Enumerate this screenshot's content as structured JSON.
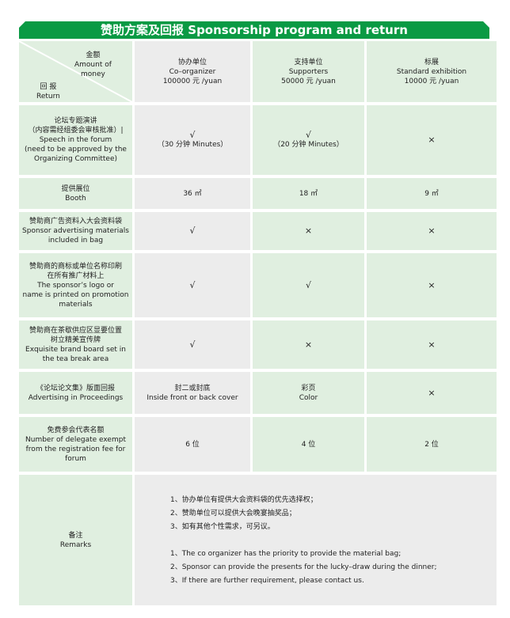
{
  "title": "赞助方案及回报 Sponsorship program and return",
  "header": {
    "corner": {
      "money_cn": "金额",
      "money_en1": "Amount of",
      "money_en2": "money",
      "return_cn": "回 报",
      "return_en": "Return"
    },
    "columns": [
      {
        "cn": "协办单位",
        "en": "Co–organizer",
        "price": "100000 元 /yuan"
      },
      {
        "cn": "支持单位",
        "en": "Supporters",
        "price": "50000 元 /yuan"
      },
      {
        "cn": "标展",
        "en": "Standard exhibition",
        "price": "10000 元 /yuan"
      }
    ]
  },
  "rows": [
    {
      "label": [
        "论坛专题演讲",
        "（内容需经组委会审核批准）|",
        "Speech in the forum",
        "(need to be approved by the",
        "Organizing Committee)"
      ],
      "values": [
        [
          "√",
          "（30 分钟 Minutes）"
        ],
        [
          "√",
          "（20 分钟 Minutes）"
        ],
        [
          "×"
        ]
      ]
    },
    {
      "label": [
        "提供展位",
        "Booth"
      ],
      "values": [
        [
          "36 ㎡"
        ],
        [
          "18 ㎡"
        ],
        [
          "9 ㎡"
        ]
      ]
    },
    {
      "label": [
        "赞助商广告资料入大会资料袋",
        "Sponsor advertising materials",
        "included in bag"
      ],
      "values": [
        [
          "√"
        ],
        [
          "×"
        ],
        [
          "×"
        ]
      ]
    },
    {
      "label": [
        "赞助商的商标或单位名称印刷",
        "在所有推广材料上",
        "The sponsor’s logo or",
        "name is printed on promotion",
        "materials"
      ],
      "values": [
        [
          "√"
        ],
        [
          "√"
        ],
        [
          "×"
        ]
      ]
    },
    {
      "label": [
        "赞助商在茶歇供应区显要位置",
        "树立精美宣传牌",
        "Exquisite brand board set in",
        "the tea break area"
      ],
      "values": [
        [
          "√"
        ],
        [
          "×"
        ],
        [
          "×"
        ]
      ]
    },
    {
      "label": [
        "《论坛论文集》版面回报",
        "Advertising in Proceedings"
      ],
      "values": [
        [
          "封二或封底",
          "Inside front or back cover"
        ],
        [
          "彩页",
          "Color"
        ],
        [
          "×"
        ]
      ]
    },
    {
      "label": [
        "免费参会代表名额",
        "Number of delegate exempt",
        "from the registration fee for",
        "forum"
      ],
      "values": [
        [
          "6 位"
        ],
        [
          "4 位"
        ],
        [
          "2 位"
        ]
      ]
    }
  ],
  "remarks": {
    "label_cn": "备注",
    "label_en": "Remarks",
    "cn": [
      "1、协办单位有提供大会资料袋的优先选择权；",
      "2、赞助单位可以提供大会晚宴抽奖品；",
      "3、如有其他个性需求，可另议。"
    ],
    "en": [
      "1、The co organizer has the priority to provide the material bag;",
      "2、Sponsor can provide the presents for the lucky–draw during the dinner;",
      "3、If there are further requirement, please contact us."
    ]
  },
  "colors": {
    "green": "#0a9a44",
    "light_green": "#e0efe0",
    "light_gray": "#ececec"
  }
}
